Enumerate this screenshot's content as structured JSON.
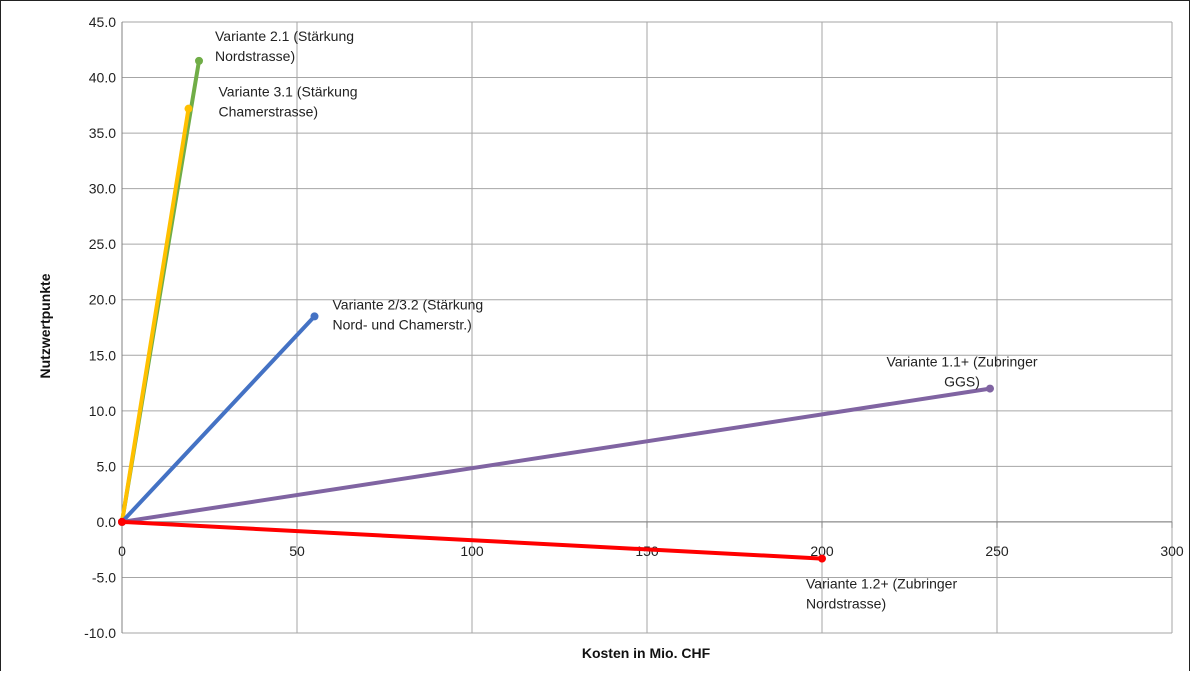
{
  "chart_data": {
    "type": "line",
    "title": "",
    "xlabel": "Kosten in Mio. CHF",
    "ylabel": "Nutzwertpunkte",
    "xlim": [
      0,
      300
    ],
    "ylim": [
      -10,
      45
    ],
    "x_ticks": [
      "0",
      "50",
      "100",
      "150",
      "200",
      "250",
      "300"
    ],
    "y_ticks": [
      "45.0",
      "40.0",
      "35.0",
      "30.0",
      "25.0",
      "20.0",
      "15.0",
      "10.0",
      "5.0",
      "0.0",
      "-5.0",
      "-10.0"
    ],
    "grid": true,
    "legend": "none",
    "series": [
      {
        "color": "#70ad47",
        "x": [
          0,
          22
        ],
        "y": [
          0,
          41.5
        ],
        "annotation": [
          "Variante 2.1 (Stärkung",
          "Nordstrasse)"
        ]
      },
      {
        "color": "#ffc000",
        "x": [
          0,
          19
        ],
        "y": [
          0,
          37.2
        ],
        "annotation": [
          "Variante 3.1 (Stärkung",
          "Chamerstrasse)"
        ]
      },
      {
        "color": "#4472c4",
        "x": [
          0,
          55
        ],
        "y": [
          0,
          18.5
        ],
        "annotation": [
          "Variante 2/3.2 (Stärkung",
          "Nord- und Chamerstr.)"
        ]
      },
      {
        "color": "#8064a2",
        "x": [
          0,
          248
        ],
        "y": [
          0,
          12
        ],
        "annotation": [
          "Variante 1.1+ (Zubringer",
          "GGS)"
        ]
      },
      {
        "color": "#ff0000",
        "x": [
          0,
          200
        ],
        "y": [
          0,
          -3.3
        ],
        "annotation": [
          "Variante 1.2+ (Zubringer",
          "Nordstrasse)"
        ]
      }
    ]
  }
}
